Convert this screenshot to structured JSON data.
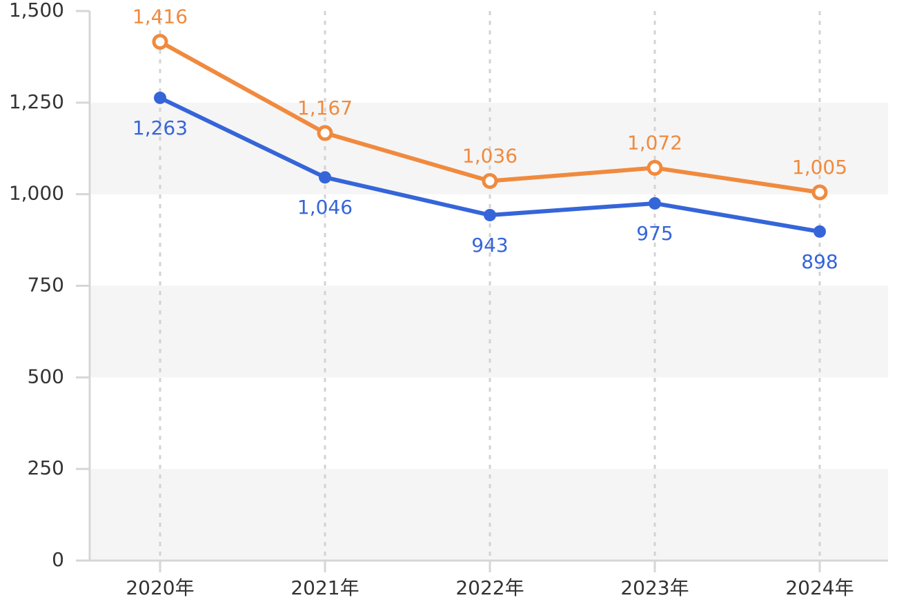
{
  "chart_data": {
    "type": "line",
    "categories": [
      "2020年",
      "2021年",
      "2022年",
      "2023年",
      "2024年"
    ],
    "ylim": [
      0,
      1500
    ],
    "yticks": [
      0,
      250,
      500,
      750,
      1000,
      1250,
      1500
    ],
    "ytick_labels": [
      "0",
      "250",
      "500",
      "750",
      "1,000",
      "1,250",
      "1,500"
    ],
    "grid": "vertical dashed lines at categories, alternating horizontal bands",
    "legend": "none",
    "series": [
      {
        "values": [
          1416,
          1167,
          1036,
          1072,
          1005
        ],
        "labels": [
          "1,416",
          "1,167",
          "1,036",
          "1,072",
          "1,005"
        ],
        "color": "#f08a3e",
        "marker": "hollow-circle",
        "label_position": "above"
      },
      {
        "values": [
          1263,
          1046,
          943,
          975,
          898
        ],
        "labels": [
          "1,263",
          "1,046",
          "943",
          "975",
          "898"
        ],
        "color": "#3565d8",
        "marker": "filled-circle",
        "label_position": "below"
      }
    ]
  }
}
